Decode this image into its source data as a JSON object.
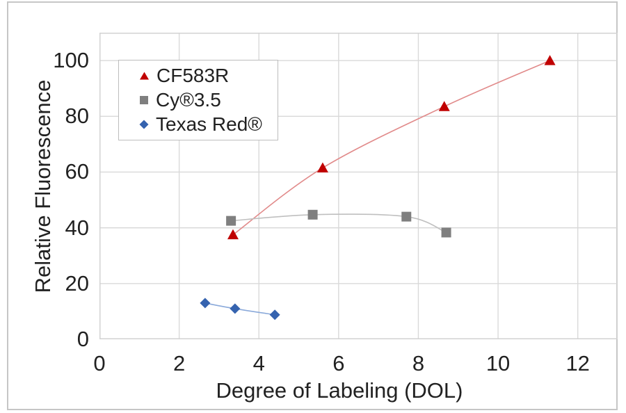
{
  "figure": {
    "background_color": "#ffffff",
    "outer_border_color": "#c6c6c6"
  },
  "axes_style": {
    "grid_color": "#d9d9d9",
    "plot_border_color": "#d2d2d2",
    "tick_label_color": "#212121"
  },
  "legend": {
    "position": "upper-left-inside",
    "border_color": "#bdbdbd",
    "background": "#ffffff"
  },
  "chart_data": {
    "type": "scatter",
    "title": "",
    "xlabel": "Degree of Labeling (DOL)",
    "ylabel": "Relative Fluorescence",
    "xlim": [
      0,
      13
    ],
    "ylim": [
      0,
      110
    ],
    "xticks": [
      0,
      2,
      4,
      6,
      8,
      10,
      12
    ],
    "yticks": [
      0,
      20,
      40,
      60,
      80,
      100
    ],
    "grid": true,
    "line_style": "smooth",
    "series": [
      {
        "name": "CF583R",
        "marker": "triangle",
        "marker_color": "#c00000",
        "line_color": "#e18a8a",
        "x": [
          3.35,
          5.6,
          8.65,
          11.3
        ],
        "y": [
          37.5,
          61.5,
          83.5,
          100
        ]
      },
      {
        "name": "Cy®3.5",
        "marker": "square",
        "marker_color": "#7f7f7f",
        "line_color": "#bfbfbf",
        "x": [
          3.3,
          5.35,
          7.7,
          8.7
        ],
        "y": [
          42.5,
          44.7,
          44.0,
          38.3
        ]
      },
      {
        "name": "Texas Red®",
        "marker": "diamond",
        "marker_color": "#3563af",
        "line_color": "#8aa9da",
        "x": [
          2.65,
          3.4,
          4.4
        ],
        "y": [
          13.0,
          11.0,
          8.8
        ]
      }
    ]
  }
}
